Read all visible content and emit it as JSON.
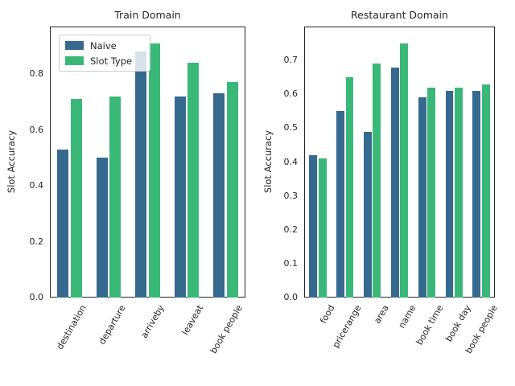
{
  "colors": {
    "naive": "#36698e",
    "slot_type": "#3ab878",
    "text": "#262626",
    "spine": "#262626",
    "legend_border": "#cccccc",
    "background": "#ffffff"
  },
  "legend": {
    "items": [
      {
        "label": "Naive",
        "color_key": "naive"
      },
      {
        "label": "Slot Type",
        "color_key": "slot_type"
      }
    ]
  },
  "chart_data": [
    {
      "type": "bar",
      "title": "Train Domain",
      "ylabel": "Slot Accuracy",
      "categories": [
        "destination",
        "departure",
        "arriveby",
        "leaveat",
        "book people"
      ],
      "series": [
        {
          "name": "Naive",
          "values": [
            0.53,
            0.5,
            0.88,
            0.72,
            0.73
          ]
        },
        {
          "name": "Slot Type",
          "values": [
            0.71,
            0.72,
            0.91,
            0.84,
            0.77
          ]
        }
      ],
      "ylim": [
        0,
        0.97
      ],
      "yticks": [
        0.0,
        0.2,
        0.4,
        0.6,
        0.8
      ],
      "xtick_rotation": 60,
      "grid": false,
      "legend_position": "upper left"
    },
    {
      "type": "bar",
      "title": "Restaurant Domain",
      "ylabel": "Slot Accuracy",
      "categories": [
        "food",
        "pricerange",
        "area",
        "name",
        "book time",
        "book day",
        "book people"
      ],
      "series": [
        {
          "name": "Naive",
          "values": [
            0.42,
            0.55,
            0.49,
            0.68,
            0.59,
            0.61,
            0.61
          ]
        },
        {
          "name": "Slot Type",
          "values": [
            0.41,
            0.65,
            0.69,
            0.75,
            0.62,
            0.62,
            0.63
          ]
        }
      ],
      "ylim": [
        0,
        0.8
      ],
      "yticks": [
        0.0,
        0.1,
        0.2,
        0.3,
        0.4,
        0.5,
        0.6,
        0.7
      ],
      "xtick_rotation": 60,
      "grid": false,
      "legend_position": null
    }
  ]
}
